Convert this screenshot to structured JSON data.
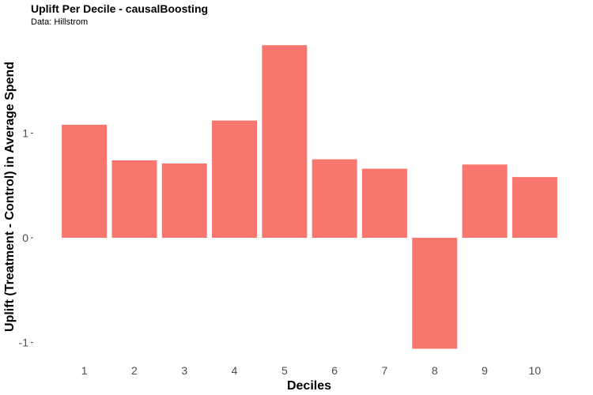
{
  "chart_data": {
    "type": "bar",
    "title": "Uplift Per Decile - causalBoosting",
    "subtitle": "Data: Hillstrom",
    "xlabel": "Deciles",
    "ylabel": "Uplift (Treatment - Control) in Average Spend",
    "categories": [
      "1",
      "2",
      "3",
      "4",
      "5",
      "6",
      "7",
      "8",
      "9",
      "10"
    ],
    "values": [
      1.08,
      0.74,
      0.71,
      1.12,
      1.84,
      0.75,
      0.66,
      -1.06,
      0.7,
      0.58
    ],
    "yticks": [
      -1,
      0,
      1
    ],
    "ytick_labels": [
      "-1",
      "0",
      "1"
    ],
    "ylim": [
      -1.16,
      1.96
    ],
    "bar_color": "#F8766D",
    "grid": false,
    "legend": false
  }
}
